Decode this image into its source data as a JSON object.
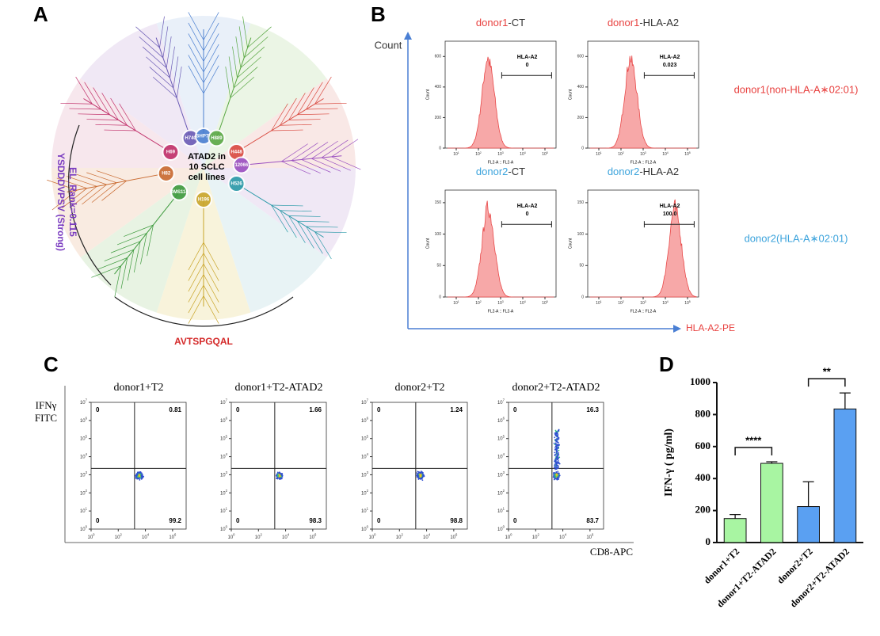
{
  "panel_a": {
    "letter": "A",
    "center": [
      "ATAD2 in",
      "10 SCLC",
      "cell lines"
    ],
    "cell_lines": [
      "H740",
      "SHP77",
      "H889",
      "H448",
      "12066",
      "H526",
      "H196",
      "DMS114",
      "H82",
      "H69"
    ],
    "annotations": [
      "YSDDDVPSV (Strong)",
      "EL_Rank=0.115",
      "AVTSPGQAL"
    ]
  },
  "panel_b": {
    "letter": "B",
    "y_label": "Count",
    "x_label": "HLA-A2-PE",
    "plot_x_label": "FL2-A :: FL2-A",
    "plot_y_label": "Count",
    "tick_base": "10",
    "xticks": [
      1,
      2,
      3,
      4,
      5
    ],
    "xlim": [
      0.5,
      5.5
    ],
    "rows": [
      {
        "donor": "donor1",
        "color": "#e8413f",
        "label": "donor1(non-HLA-A∗02:01)",
        "ylim": [
          0,
          700
        ],
        "yticks": [
          0,
          200,
          400,
          600
        ],
        "plots": [
          {
            "condition": "-CT",
            "gate_label": "HLA-A2",
            "gate_value": "0"
          },
          {
            "condition": "-HLA-A2",
            "gate_label": "HLA-A2",
            "gate_value": "0.023"
          }
        ]
      },
      {
        "donor": "donor2",
        "color": "#3ba3dc",
        "label": "donor2(HLA-A∗02:01)",
        "ylim": [
          0,
          170
        ],
        "yticks": [
          0,
          50,
          100,
          150
        ],
        "plots": [
          {
            "condition": "-CT",
            "gate_label": "HLA-A2",
            "gate_value": "0"
          },
          {
            "condition": "-HLA-A2",
            "gate_label": "HLA-A2",
            "gate_value": "100.0"
          }
        ]
      }
    ]
  },
  "panel_c": {
    "letter": "C",
    "y_label": [
      "IFNγ",
      "FITC"
    ],
    "x_label": "CD8-APC",
    "tick_base": "10",
    "xticks": [
      0,
      2,
      4,
      6
    ],
    "yticks": [
      0,
      1,
      2,
      3,
      4,
      5,
      6,
      7
    ],
    "xlim": [
      0,
      7
    ],
    "ylim": [
      0,
      7
    ],
    "plots": [
      {
        "title": "donor1+T2",
        "quadrants": [
          "0",
          "0.81",
          "0",
          "99.2"
        ]
      },
      {
        "title": "donor1+T2-ATAD2",
        "quadrants": [
          "0",
          "1.66",
          "0",
          "98.3"
        ]
      },
      {
        "title": "donor2+T2",
        "quadrants": [
          "0",
          "1.24",
          "0",
          "98.8"
        ]
      },
      {
        "title": "donor2+T2-ATAD2",
        "quadrants": [
          "0",
          "16.3",
          "0",
          "83.7"
        ]
      }
    ]
  },
  "chart_data": {
    "type": "bar",
    "letter": "D",
    "y_label": "IFN-γ ( pg/ml)",
    "categories": [
      "donor1+T2",
      "donor1+T2-ATAD2",
      "donor2+T2",
      "donor2+T2-ATAD2"
    ],
    "values": [
      150,
      495,
      225,
      835
    ],
    "errors": [
      25,
      10,
      155,
      100
    ],
    "colors": [
      "#a8f5a2",
      "#a8f5a2",
      "#5aa0f2",
      "#5aa0f2"
    ],
    "ylim": [
      0,
      1000
    ],
    "yticks": [
      0,
      200,
      400,
      600,
      800,
      1000
    ],
    "annotations": [
      "****",
      "**"
    ]
  }
}
